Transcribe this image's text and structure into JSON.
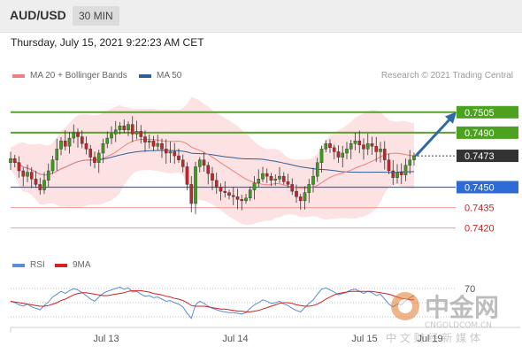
{
  "header": {
    "pair": "AUD/USD",
    "timeframe": "30 MIN"
  },
  "datetime": "Thursday, July 15, 2021 9:22:23 AM CET",
  "legend": {
    "ma20": {
      "label": "MA 20 + Bollinger Bands",
      "color": "#f08080"
    },
    "ma50": {
      "label": "MA 50",
      "color": "#2f5f98"
    }
  },
  "credit": "Research © 2021 Trading Central",
  "rsi_legend": {
    "rsi": {
      "label": "RSI",
      "color": "#5b8bd9"
    },
    "ma9": {
      "label": "9MA",
      "color": "#d42020"
    }
  },
  "watermark": {
    "text": "中金网",
    "sub": "CNGOLDCOM.CN",
    "tagline": "中 文 财 经 新 媒 体"
  },
  "chart_data": {
    "type": "candlestick",
    "y_range": [
      0.7412,
      0.7525
    ],
    "current_price": 0.7473,
    "levels": [
      {
        "value": 0.7505,
        "label": "0.7505",
        "kind": "resistance"
      },
      {
        "value": 0.749,
        "label": "0.7490",
        "kind": "resistance"
      },
      {
        "value": 0.7473,
        "label": "0.7473",
        "kind": "current"
      },
      {
        "value": 0.745,
        "label": "0.7450",
        "kind": "pivot"
      },
      {
        "value": 0.7435,
        "label": "0.7435",
        "kind": "support"
      },
      {
        "value": 0.742,
        "label": "0.7420",
        "kind": "support"
      }
    ],
    "x_labels": [
      "Jul 13",
      "Jul 14",
      "Jul 15",
      "Jul 19"
    ],
    "closes": [
      0.7471,
      0.7468,
      0.7462,
      0.7458,
      0.7461,
      0.7456,
      0.7452,
      0.7448,
      0.7455,
      0.7462,
      0.747,
      0.7478,
      0.7484,
      0.748,
      0.7486,
      0.749,
      0.7487,
      0.7482,
      0.7478,
      0.7472,
      0.7468,
      0.7475,
      0.7482,
      0.7486,
      0.7489,
      0.7492,
      0.7495,
      0.7492,
      0.7496,
      0.7489,
      0.7491,
      0.7487,
      0.7483,
      0.7484,
      0.748,
      0.7482,
      0.7478,
      0.7475,
      0.7476,
      0.7473,
      0.747,
      0.7465,
      0.7452,
      0.7438,
      0.7465,
      0.747,
      0.7466,
      0.746,
      0.7455,
      0.745,
      0.7447,
      0.7446,
      0.7444,
      0.7443,
      0.7441,
      0.744,
      0.7442,
      0.7448,
      0.7453,
      0.7456,
      0.746,
      0.7458,
      0.7455,
      0.7456,
      0.7458,
      0.7454,
      0.7452,
      0.7447,
      0.7443,
      0.744,
      0.7446,
      0.7452,
      0.7458,
      0.7468,
      0.7478,
      0.7482,
      0.7479,
      0.7476,
      0.7472,
      0.7475,
      0.7478,
      0.7482,
      0.7484,
      0.7481,
      0.7478,
      0.7482,
      0.748,
      0.7476,
      0.7478,
      0.747,
      0.7462,
      0.7457,
      0.7461,
      0.7459,
      0.7466,
      0.747,
      0.7473
    ],
    "rsi": [
      52,
      50,
      47,
      45,
      48,
      44,
      42,
      40,
      46,
      51,
      58,
      62,
      66,
      63,
      67,
      70,
      68,
      64,
      60,
      55,
      52,
      58,
      63,
      66,
      68,
      70,
      72,
      69,
      71,
      65,
      66,
      62,
      59,
      60,
      57,
      58,
      55,
      52,
      53,
      50,
      48,
      44,
      35,
      28,
      47,
      52,
      49,
      45,
      42,
      40,
      38,
      37,
      36,
      36,
      35,
      34,
      36,
      42,
      47,
      50,
      54,
      52,
      49,
      50,
      52,
      48,
      46,
      42,
      39,
      37,
      43,
      49,
      54,
      62,
      69,
      71,
      68,
      65,
      61,
      63,
      65,
      68,
      69,
      66,
      63,
      66,
      64,
      60,
      62,
      55,
      48,
      44,
      48,
      47,
      53,
      57,
      60
    ],
    "rsi_ma9": [
      52,
      51,
      50,
      49,
      48,
      47,
      46,
      45,
      45,
      46,
      48,
      50,
      53,
      55,
      58,
      61,
      63,
      64,
      64,
      63,
      62,
      61,
      60,
      60,
      61,
      62,
      63,
      64,
      66,
      67,
      67,
      67,
      66,
      65,
      63,
      62,
      61,
      59,
      58,
      56,
      55,
      53,
      50,
      46,
      45,
      45,
      45,
      44,
      43,
      42,
      41,
      41,
      40,
      39,
      38,
      38,
      37,
      37,
      38,
      39,
      41,
      43,
      45,
      47,
      49,
      50,
      50,
      49,
      47,
      46,
      45,
      45,
      46,
      48,
      51,
      55,
      58,
      61,
      63,
      64,
      65,
      66,
      66,
      66,
      66,
      66,
      66,
      65,
      64,
      63,
      62,
      60,
      58,
      56,
      55,
      54,
      54
    ],
    "rsi_levels": [
      70,
      50,
      30
    ],
    "rsi_label": "70"
  }
}
